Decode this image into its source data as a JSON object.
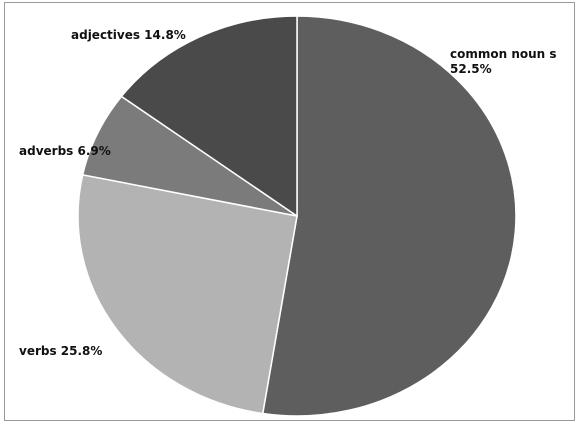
{
  "chart_data": {
    "type": "pie",
    "title": "",
    "start_angle_deg": 0,
    "direction": "clockwise",
    "slices": [
      {
        "category": "common noun s",
        "value": 52.5,
        "label_lines": [
          "common noun s",
          "52.5%"
        ],
        "color": "#5e5e5e"
      },
      {
        "category": "verbs",
        "value": 25.8,
        "label_lines": [
          "verbs  25.8%"
        ],
        "color": "#b3b3b3"
      },
      {
        "category": "adverbs",
        "value": 6.9,
        "label_lines": [
          "adverbs 6.9%"
        ],
        "color": "#7b7b7b"
      },
      {
        "category": "adjectives",
        "value": 14.8,
        "label_lines": [
          "adjectives 14.8%"
        ],
        "color": "#4a4a4a"
      }
    ],
    "legend": "none",
    "border_color": "#ffffff"
  }
}
